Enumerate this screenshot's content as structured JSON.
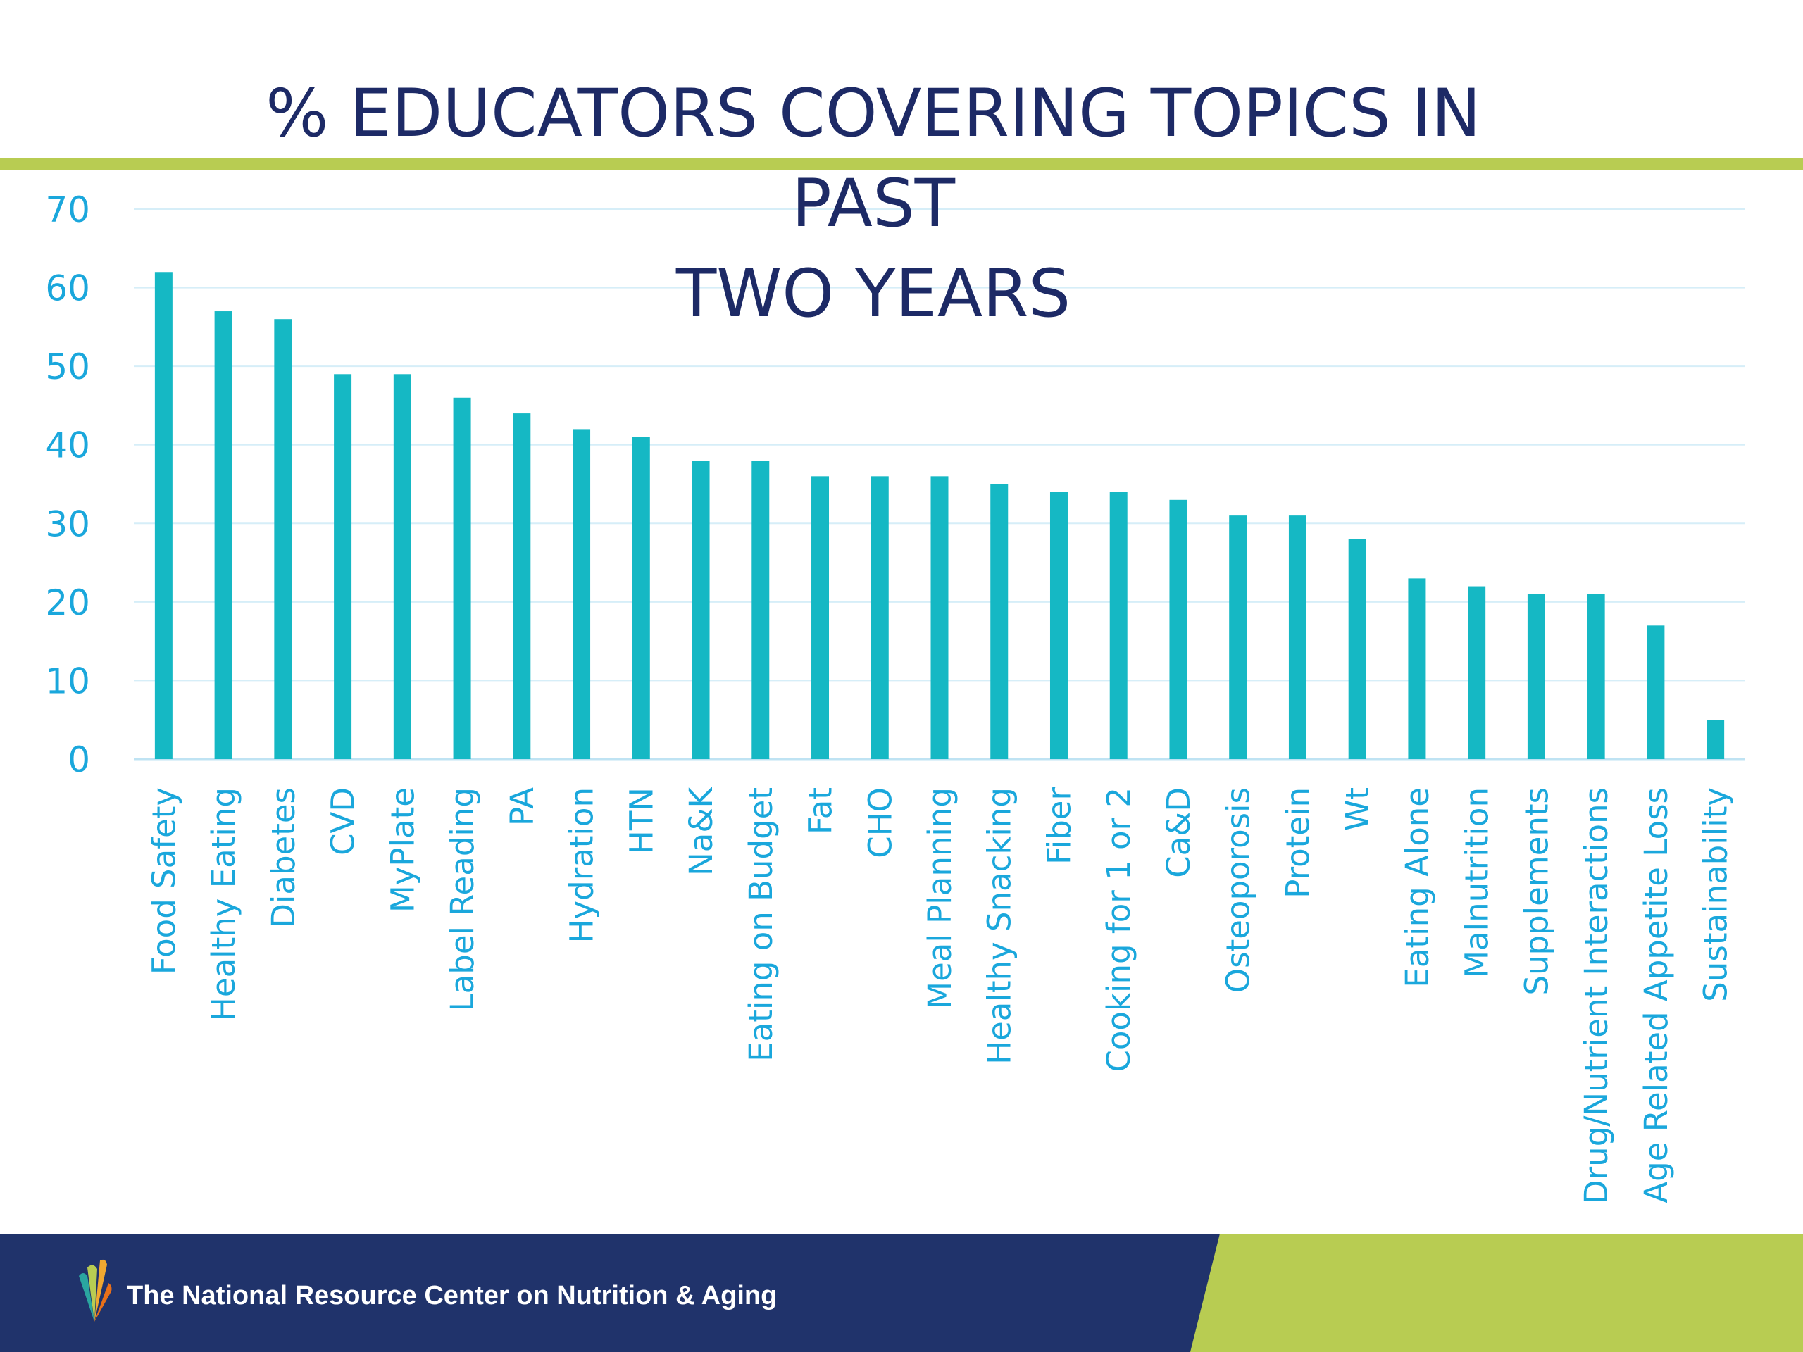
{
  "slide": {
    "title": "% EDUCATORS COVERING TOPICS IN PAST\nTWO YEARS",
    "org_name": "The National Resource Center on Nutrition & Aging",
    "logo_icon": "leaf-fan-logo-icon"
  },
  "colors": {
    "bar": "#15b8c4",
    "axis_text": "#1aa7dc",
    "title": "#1d2a66",
    "accent": "#b8cc52",
    "footer_navy": "#20336b",
    "footer_green": "#b8cc52",
    "grid": "#d6eef8"
  },
  "chart_data": {
    "type": "bar",
    "title": "% EDUCATORS COVERING TOPICS IN PAST TWO YEARS",
    "xlabel": "",
    "ylabel": "",
    "ylim": [
      0,
      70
    ],
    "yticks": [
      0,
      10,
      20,
      30,
      40,
      50,
      60,
      70
    ],
    "grid": true,
    "legend": "none",
    "categories": [
      "Food Safety",
      "Healthy Eating",
      "Diabetes",
      "CVD",
      "MyPlate",
      "Label Reading",
      "PA",
      "Hydration",
      "HTN",
      "Na&K",
      "Eating on Budget",
      "Fat",
      "CHO",
      "Meal Planning",
      "Healthy Snacking",
      "Fiber",
      "Cooking for 1 or 2",
      "Ca&D",
      "Osteoporosis",
      "Protein",
      "Wt",
      "Eating Alone",
      "Malnutrition",
      "Supplements",
      "Drug/Nutrient Interactions",
      "Age Related Appetite Loss",
      "Sustainability"
    ],
    "values": [
      62,
      57,
      56,
      49,
      49,
      46,
      44,
      42,
      41,
      38,
      38,
      36,
      36,
      36,
      35,
      34,
      34,
      33,
      31,
      31,
      28,
      23,
      22,
      21,
      21,
      17,
      5
    ]
  }
}
